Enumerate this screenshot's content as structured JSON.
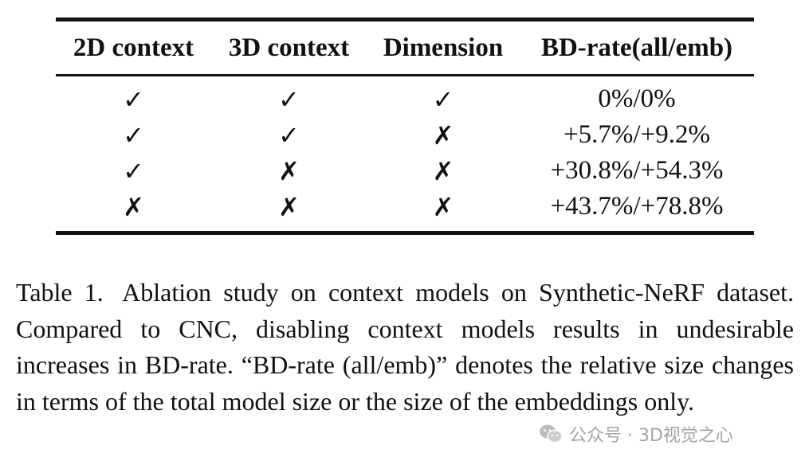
{
  "table": {
    "headers": [
      "2D context",
      "3D context",
      "Dimension",
      "BD-rate(all/emb)"
    ],
    "rows": [
      [
        "✓",
        "✓",
        "✓",
        "0%/0%"
      ],
      [
        "✓",
        "✓",
        "✗",
        "+5.7%/+9.2%"
      ],
      [
        "✓",
        "✗",
        "✗",
        "+30.8%/+54.3%"
      ],
      [
        "✗",
        "✗",
        "✗",
        "+43.7%/+78.8%"
      ]
    ]
  },
  "caption": {
    "label": "Table 1.",
    "text": "Ablation study on context models on Synthetic-NeRF dataset. Compared to CNC, disabling context models results in undesirable increases in BD-rate. “BD-rate (all/emb)” denotes the relative size changes in terms of the total model size or the size of the embeddings only."
  },
  "watermark": {
    "text": "公众号 · 3D视觉之心",
    "icon": "wechat-icon"
  }
}
